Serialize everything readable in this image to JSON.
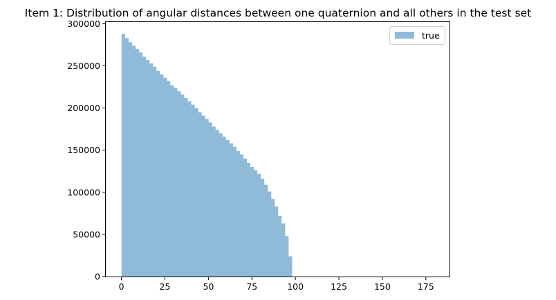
{
  "chart_data": {
    "type": "bar",
    "title": "Item 1: Distribution of angular distances between one quaternion and all others in the test set",
    "xlabel": "",
    "ylabel": "",
    "xlim": [
      -9,
      189
    ],
    "ylim": [
      0,
      302000
    ],
    "xticks": [
      0,
      25,
      50,
      75,
      100,
      125,
      150,
      175
    ],
    "yticks": [
      0,
      50000,
      100000,
      150000,
      200000,
      250000,
      300000
    ],
    "grid": false,
    "legend_position": "top-right",
    "bin_width": 2,
    "bin_start": 0,
    "series": [
      {
        "name": "true",
        "color": "#8fbad8",
        "values": [
          288000,
          283000,
          278000,
          274000,
          270000,
          266000,
          261000,
          257000,
          253000,
          249000,
          244000,
          240000,
          236000,
          232000,
          227000,
          224000,
          220000,
          216000,
          212000,
          208000,
          204000,
          200000,
          195000,
          191000,
          187000,
          183000,
          178000,
          174000,
          170000,
          166000,
          162000,
          158000,
          154000,
          149000,
          145000,
          140000,
          135000,
          130000,
          126000,
          122000,
          116000,
          109000,
          101000,
          92000,
          83000,
          72000,
          63000,
          48000,
          24000
        ]
      }
    ]
  }
}
